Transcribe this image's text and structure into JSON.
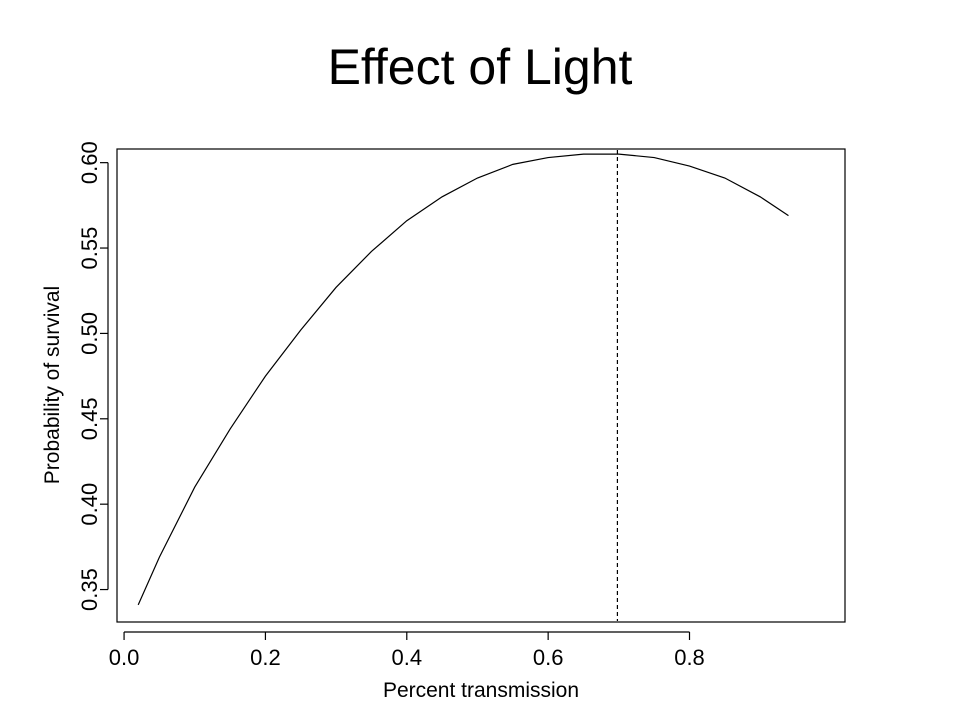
{
  "slide": {
    "title": "Effect of Light"
  },
  "chart_data": {
    "type": "line",
    "title": "",
    "xlabel": "Percent transmission",
    "ylabel": "Probability of survival",
    "xlim": [
      -0.01,
      1.02
    ],
    "ylim": [
      0.331,
      0.608
    ],
    "x_ticks": [
      0.0,
      0.2,
      0.4,
      0.6,
      0.8
    ],
    "x_tick_labels": [
      "0.0",
      "0.2",
      "0.4",
      "0.6",
      "0.8"
    ],
    "y_ticks": [
      0.35,
      0.4,
      0.45,
      0.5,
      0.55,
      0.6
    ],
    "y_tick_labels": [
      "0.35",
      "0.40",
      "0.45",
      "0.50",
      "0.55",
      "0.60"
    ],
    "grid": false,
    "series": [
      {
        "x": [
          0.02,
          0.05,
          0.1,
          0.15,
          0.2,
          0.25,
          0.3,
          0.35,
          0.4,
          0.45,
          0.5,
          0.55,
          0.6,
          0.65,
          0.7,
          0.75,
          0.8,
          0.85,
          0.9,
          0.94
        ],
        "y": [
          0.341,
          0.369,
          0.41,
          0.444,
          0.475,
          0.502,
          0.527,
          0.548,
          0.566,
          0.58,
          0.591,
          0.599,
          0.603,
          0.605,
          0.605,
          0.603,
          0.598,
          0.591,
          0.58,
          0.569
        ]
      }
    ],
    "reference_line": {
      "orientation": "vertical",
      "x": 0.698,
      "style": "dashed"
    }
  }
}
